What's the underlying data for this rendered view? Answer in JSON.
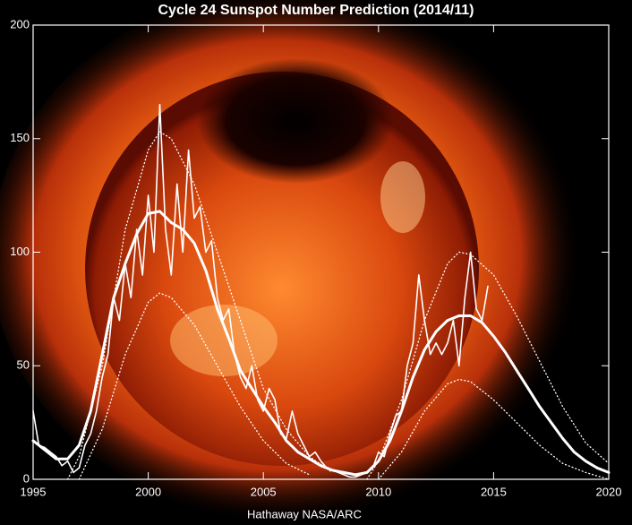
{
  "chart_data": {
    "type": "line",
    "title": "Cycle 24 Sunspot Number Prediction (2014/11)",
    "credit": "Hathaway  NASA/ARC",
    "xlim": [
      1995,
      2020
    ],
    "xticks": [
      1995,
      2000,
      2005,
      2010,
      2015,
      2020
    ],
    "ylim": [
      0,
      200
    ],
    "yticks": [
      0,
      50,
      100,
      150,
      200
    ],
    "series": [
      {
        "color": "#ffffff",
        "style": "solid",
        "width": 1.6,
        "x": [
          1995,
          1995.25,
          1995.5,
          1995.75,
          1996,
          1996.25,
          1996.5,
          1996.75,
          1997,
          1997.25,
          1997.5,
          1997.75,
          1998,
          1998.25,
          1998.5,
          1998.75,
          1999,
          1999.25,
          1999.5,
          1999.75,
          2000,
          2000.25,
          2000.5,
          2000.75,
          2001,
          2001.25,
          2001.5,
          2001.75,
          2002,
          2002.25,
          2002.5,
          2002.75,
          2003,
          2003.25,
          2003.5,
          2003.75,
          2004,
          2004.25,
          2004.5,
          2004.75,
          2005,
          2005.25,
          2005.5,
          2005.75,
          2006,
          2006.25,
          2006.5,
          2006.75,
          2007,
          2007.25,
          2007.5,
          2007.75,
          2008,
          2008.25,
          2008.5,
          2008.75,
          2009,
          2009.25,
          2009.5,
          2009.75,
          2010,
          2010.25,
          2010.5,
          2010.75,
          2011,
          2011.25,
          2011.5,
          2011.75,
          2012,
          2012.25,
          2012.5,
          2012.75,
          2013,
          2013.25,
          2013.5,
          2013.75,
          2014,
          2014.25,
          2014.5,
          2014.75
        ],
        "values": [
          30,
          15,
          14,
          12,
          10,
          6,
          8,
          3,
          5,
          15,
          20,
          30,
          45,
          55,
          80,
          70,
          95,
          80,
          110,
          90,
          125,
          100,
          165,
          110,
          90,
          130,
          100,
          145,
          115,
          120,
          100,
          105,
          80,
          70,
          75,
          55,
          45,
          40,
          50,
          35,
          30,
          40,
          35,
          20,
          18,
          30,
          20,
          15,
          10,
          12,
          8,
          5,
          4,
          3,
          2,
          1,
          1,
          2,
          3,
          5,
          12,
          10,
          20,
          28,
          30,
          50,
          60,
          90,
          70,
          55,
          60,
          55,
          60,
          70,
          50,
          80,
          100,
          75,
          70,
          85
        ]
      },
      {
        "color": "#ffffff",
        "style": "solid",
        "width": 3,
        "x": [
          1995,
          1996,
          1996.5,
          1997,
          1997.5,
          1998,
          1998.5,
          1999,
          1999.5,
          2000,
          2000.5,
          2001,
          2001.5,
          2002,
          2002.5,
          2003,
          2003.5,
          2004,
          2004.5,
          2005,
          2005.5,
          2006,
          2006.5,
          2007,
          2007.5,
          2008,
          2008.5,
          2009,
          2009.5,
          2010,
          2010.5,
          2011,
          2011.5,
          2012,
          2012.5,
          2013,
          2013.5,
          2014,
          2014.5,
          2015,
          2015.5,
          2016,
          2016.5,
          2017,
          2017.5,
          2018,
          2018.5,
          2019,
          2019.5,
          2020
        ],
        "values": [
          17,
          9,
          9,
          15,
          30,
          55,
          80,
          95,
          108,
          117,
          118,
          113,
          110,
          104,
          92,
          75,
          62,
          48,
          40,
          32,
          25,
          17,
          12,
          9,
          6,
          4,
          3,
          2,
          3,
          8,
          17,
          30,
          45,
          57,
          65,
          70,
          72,
          72,
          69,
          63,
          56,
          48,
          40,
          32,
          25,
          18,
          12,
          8,
          5,
          3
        ]
      },
      {
        "color": "#ffffff",
        "style": "dotted",
        "width": 1.3,
        "x": [
          1996.5,
          1997,
          1998,
          1999,
          2000,
          2000.5,
          2001,
          2002,
          2003,
          2004,
          2005,
          2006,
          2007,
          2008
        ],
        "values": [
          0,
          10,
          50,
          110,
          145,
          153,
          150,
          130,
          100,
          70,
          40,
          22,
          10,
          3
        ]
      },
      {
        "color": "#ffffff",
        "style": "dotted",
        "width": 1.3,
        "x": [
          1997,
          1998,
          1999,
          2000,
          2000.5,
          2001,
          2002,
          2003,
          2004,
          2005,
          2006,
          2007
        ],
        "values": [
          0,
          22,
          55,
          78,
          82,
          80,
          68,
          50,
          32,
          17,
          7,
          2
        ]
      },
      {
        "color": "#ffffff",
        "style": "dotted",
        "width": 1.3,
        "x": [
          2009.5,
          2010,
          2011,
          2012,
          2013,
          2013.5,
          2014,
          2015,
          2016,
          2017,
          2018,
          2019,
          2020
        ],
        "values": [
          0,
          8,
          35,
          70,
          95,
          100,
          99,
          90,
          72,
          52,
          32,
          16,
          7
        ]
      },
      {
        "color": "#ffffff",
        "style": "dotted",
        "width": 1.3,
        "x": [
          2010,
          2011,
          2012,
          2013,
          2013.5,
          2014,
          2015,
          2016,
          2017,
          2018,
          2019,
          2020
        ],
        "values": [
          0,
          12,
          30,
          42,
          44,
          43,
          35,
          25,
          15,
          7,
          3,
          0
        ]
      }
    ]
  }
}
